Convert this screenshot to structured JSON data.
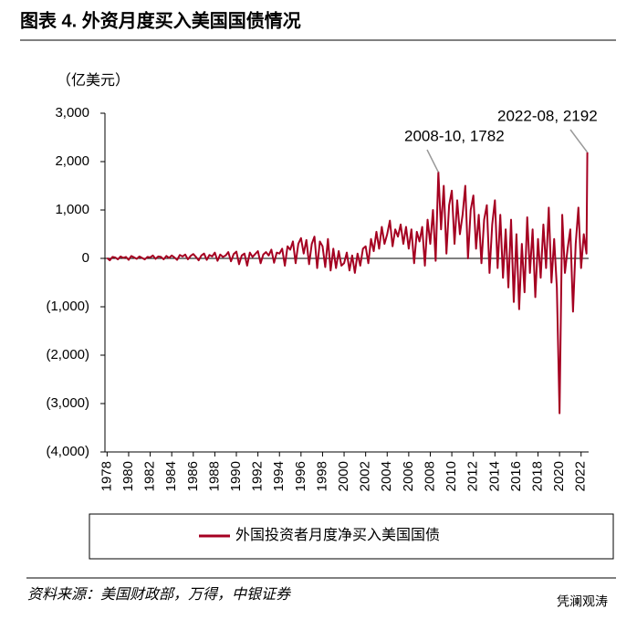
{
  "chart_data": {
    "type": "line",
    "title": "图表 4. 外资月度买入美国国债情况",
    "y_axis_label": "（亿美元）",
    "source": "资料来源：美国财政部，万得，中银证券",
    "watermark": "凭澜观涛",
    "xlim": [
      1977.8,
      2022.7
    ],
    "xticks": [
      1978,
      1980,
      1982,
      1984,
      1986,
      1988,
      1990,
      1992,
      1994,
      1996,
      1998,
      2000,
      2002,
      2004,
      2006,
      2008,
      2010,
      2012,
      2014,
      2016,
      2018,
      2020,
      2022
    ],
    "ylim": [
      -4000,
      3000
    ],
    "yticks": [
      {
        "value": 3000,
        "label": "3,000"
      },
      {
        "value": 2000,
        "label": "2,000"
      },
      {
        "value": 1000,
        "label": "1,000"
      },
      0,
      {
        "value": -1000,
        "label": "(1,000)"
      },
      {
        "value": -2000,
        "label": "(2,000)"
      },
      {
        "value": -3000,
        "label": "(3,000)"
      },
      {
        "value": -4000,
        "label": "(4,000)"
      }
    ],
    "negative_tick_color": "#e00000",
    "legend": "bottom",
    "x": [
      1978,
      1978.25,
      1978.5,
      1978.75,
      1979,
      1979.25,
      1979.5,
      1979.75,
      1980,
      1980.25,
      1980.5,
      1980.75,
      1981,
      1981.25,
      1981.5,
      1981.75,
      1982,
      1982.25,
      1982.5,
      1982.75,
      1983,
      1983.25,
      1983.5,
      1983.75,
      1984,
      1984.25,
      1984.5,
      1984.75,
      1985,
      1985.25,
      1985.5,
      1985.75,
      1986,
      1986.25,
      1986.5,
      1986.75,
      1987,
      1987.25,
      1987.5,
      1987.75,
      1988,
      1988.25,
      1988.5,
      1988.75,
      1989,
      1989.25,
      1989.5,
      1989.75,
      1990,
      1990.25,
      1990.5,
      1990.75,
      1991,
      1991.25,
      1991.5,
      1991.75,
      1992,
      1992.25,
      1992.5,
      1992.75,
      1993,
      1993.25,
      1993.5,
      1993.75,
      1994,
      1994.25,
      1994.5,
      1994.75,
      1995,
      1995.25,
      1995.5,
      1995.75,
      1996,
      1996.25,
      1996.5,
      1996.75,
      1997,
      1997.25,
      1997.5,
      1997.75,
      1998,
      1998.25,
      1998.5,
      1998.75,
      1999,
      1999.25,
      1999.5,
      1999.75,
      2000,
      2000.25,
      2000.5,
      2000.75,
      2001,
      2001.25,
      2001.5,
      2001.75,
      2002,
      2002.25,
      2002.5,
      2002.75,
      2003,
      2003.25,
      2003.5,
      2003.75,
      2004,
      2004.25,
      2004.5,
      2004.75,
      2005,
      2005.25,
      2005.5,
      2005.75,
      2006,
      2006.25,
      2006.5,
      2006.75,
      2007,
      2007.25,
      2007.5,
      2007.75,
      2008,
      2008.25,
      2008.5,
      2008.75,
      2009,
      2009.25,
      2009.5,
      2009.75,
      2010,
      2010.25,
      2010.5,
      2010.75,
      2011,
      2011.25,
      2011.5,
      2011.75,
      2012,
      2012.25,
      2012.5,
      2012.75,
      2013,
      2013.25,
      2013.5,
      2013.75,
      2014,
      2014.25,
      2014.5,
      2014.75,
      2015,
      2015.25,
      2015.5,
      2015.75,
      2016,
      2016.25,
      2016.5,
      2016.75,
      2017,
      2017.25,
      2017.5,
      2017.75,
      2018,
      2018.25,
      2018.5,
      2018.75,
      2019,
      2019.25,
      2019.5,
      2019.75,
      2020,
      2020.25,
      2020.5,
      2020.75,
      2021,
      2021.25,
      2021.5,
      2021.75,
      2022,
      2022.25,
      2022.5,
      2022.58
    ],
    "series": [
      {
        "name": "外国投资者月度净买入美国国债",
        "color": "#a50021",
        "values": [
          10,
          -40,
          30,
          20,
          -20,
          40,
          10,
          30,
          -30,
          50,
          20,
          -10,
          40,
          10,
          -20,
          30,
          20,
          60,
          -10,
          40,
          30,
          -20,
          50,
          10,
          60,
          20,
          -30,
          70,
          40,
          80,
          -20,
          50,
          90,
          30,
          -40,
          60,
          100,
          -30,
          70,
          40,
          120,
          -50,
          80,
          30,
          60,
          130,
          -60,
          90,
          140,
          -120,
          60,
          100,
          -150,
          120,
          30,
          90,
          150,
          -100,
          80,
          130,
          60,
          180,
          -90,
          120,
          100,
          200,
          -150,
          250,
          180,
          350,
          -100,
          300,
          420,
          100,
          380,
          -120,
          300,
          450,
          -200,
          350,
          250,
          -180,
          400,
          -250,
          200,
          -200,
          150,
          -150,
          -100,
          120,
          -250,
          60,
          -300,
          100,
          -150,
          200,
          250,
          -100,
          400,
          150,
          550,
          200,
          650,
          300,
          500,
          780,
          250,
          600,
          450,
          700,
          300,
          650,
          200,
          600,
          -100,
          550,
          350,
          650,
          -150,
          800,
          300,
          1000,
          -50,
          1782,
          600,
          1500,
          100,
          1100,
          1400,
          300,
          1200,
          500,
          900,
          1500,
          0,
          1000,
          1300,
          200,
          900,
          -100,
          800,
          1100,
          -300,
          700,
          1200,
          -200,
          900,
          -400,
          600,
          -600,
          800,
          -900,
          500,
          -1050,
          300,
          -700,
          850,
          -300,
          600,
          -800,
          400,
          -400,
          700,
          -200,
          1050,
          -500,
          400,
          -600,
          -3200,
          900,
          -300,
          200,
          600,
          -1100,
          300,
          1050,
          -200,
          500,
          100,
          2192
        ]
      }
    ],
    "annotations": [
      {
        "text": "2008-10, 1782",
        "x": 2008.75,
        "y": 1782
      },
      {
        "text": "2022-08, 2192",
        "x": 2022.58,
        "y": 2192
      }
    ]
  }
}
